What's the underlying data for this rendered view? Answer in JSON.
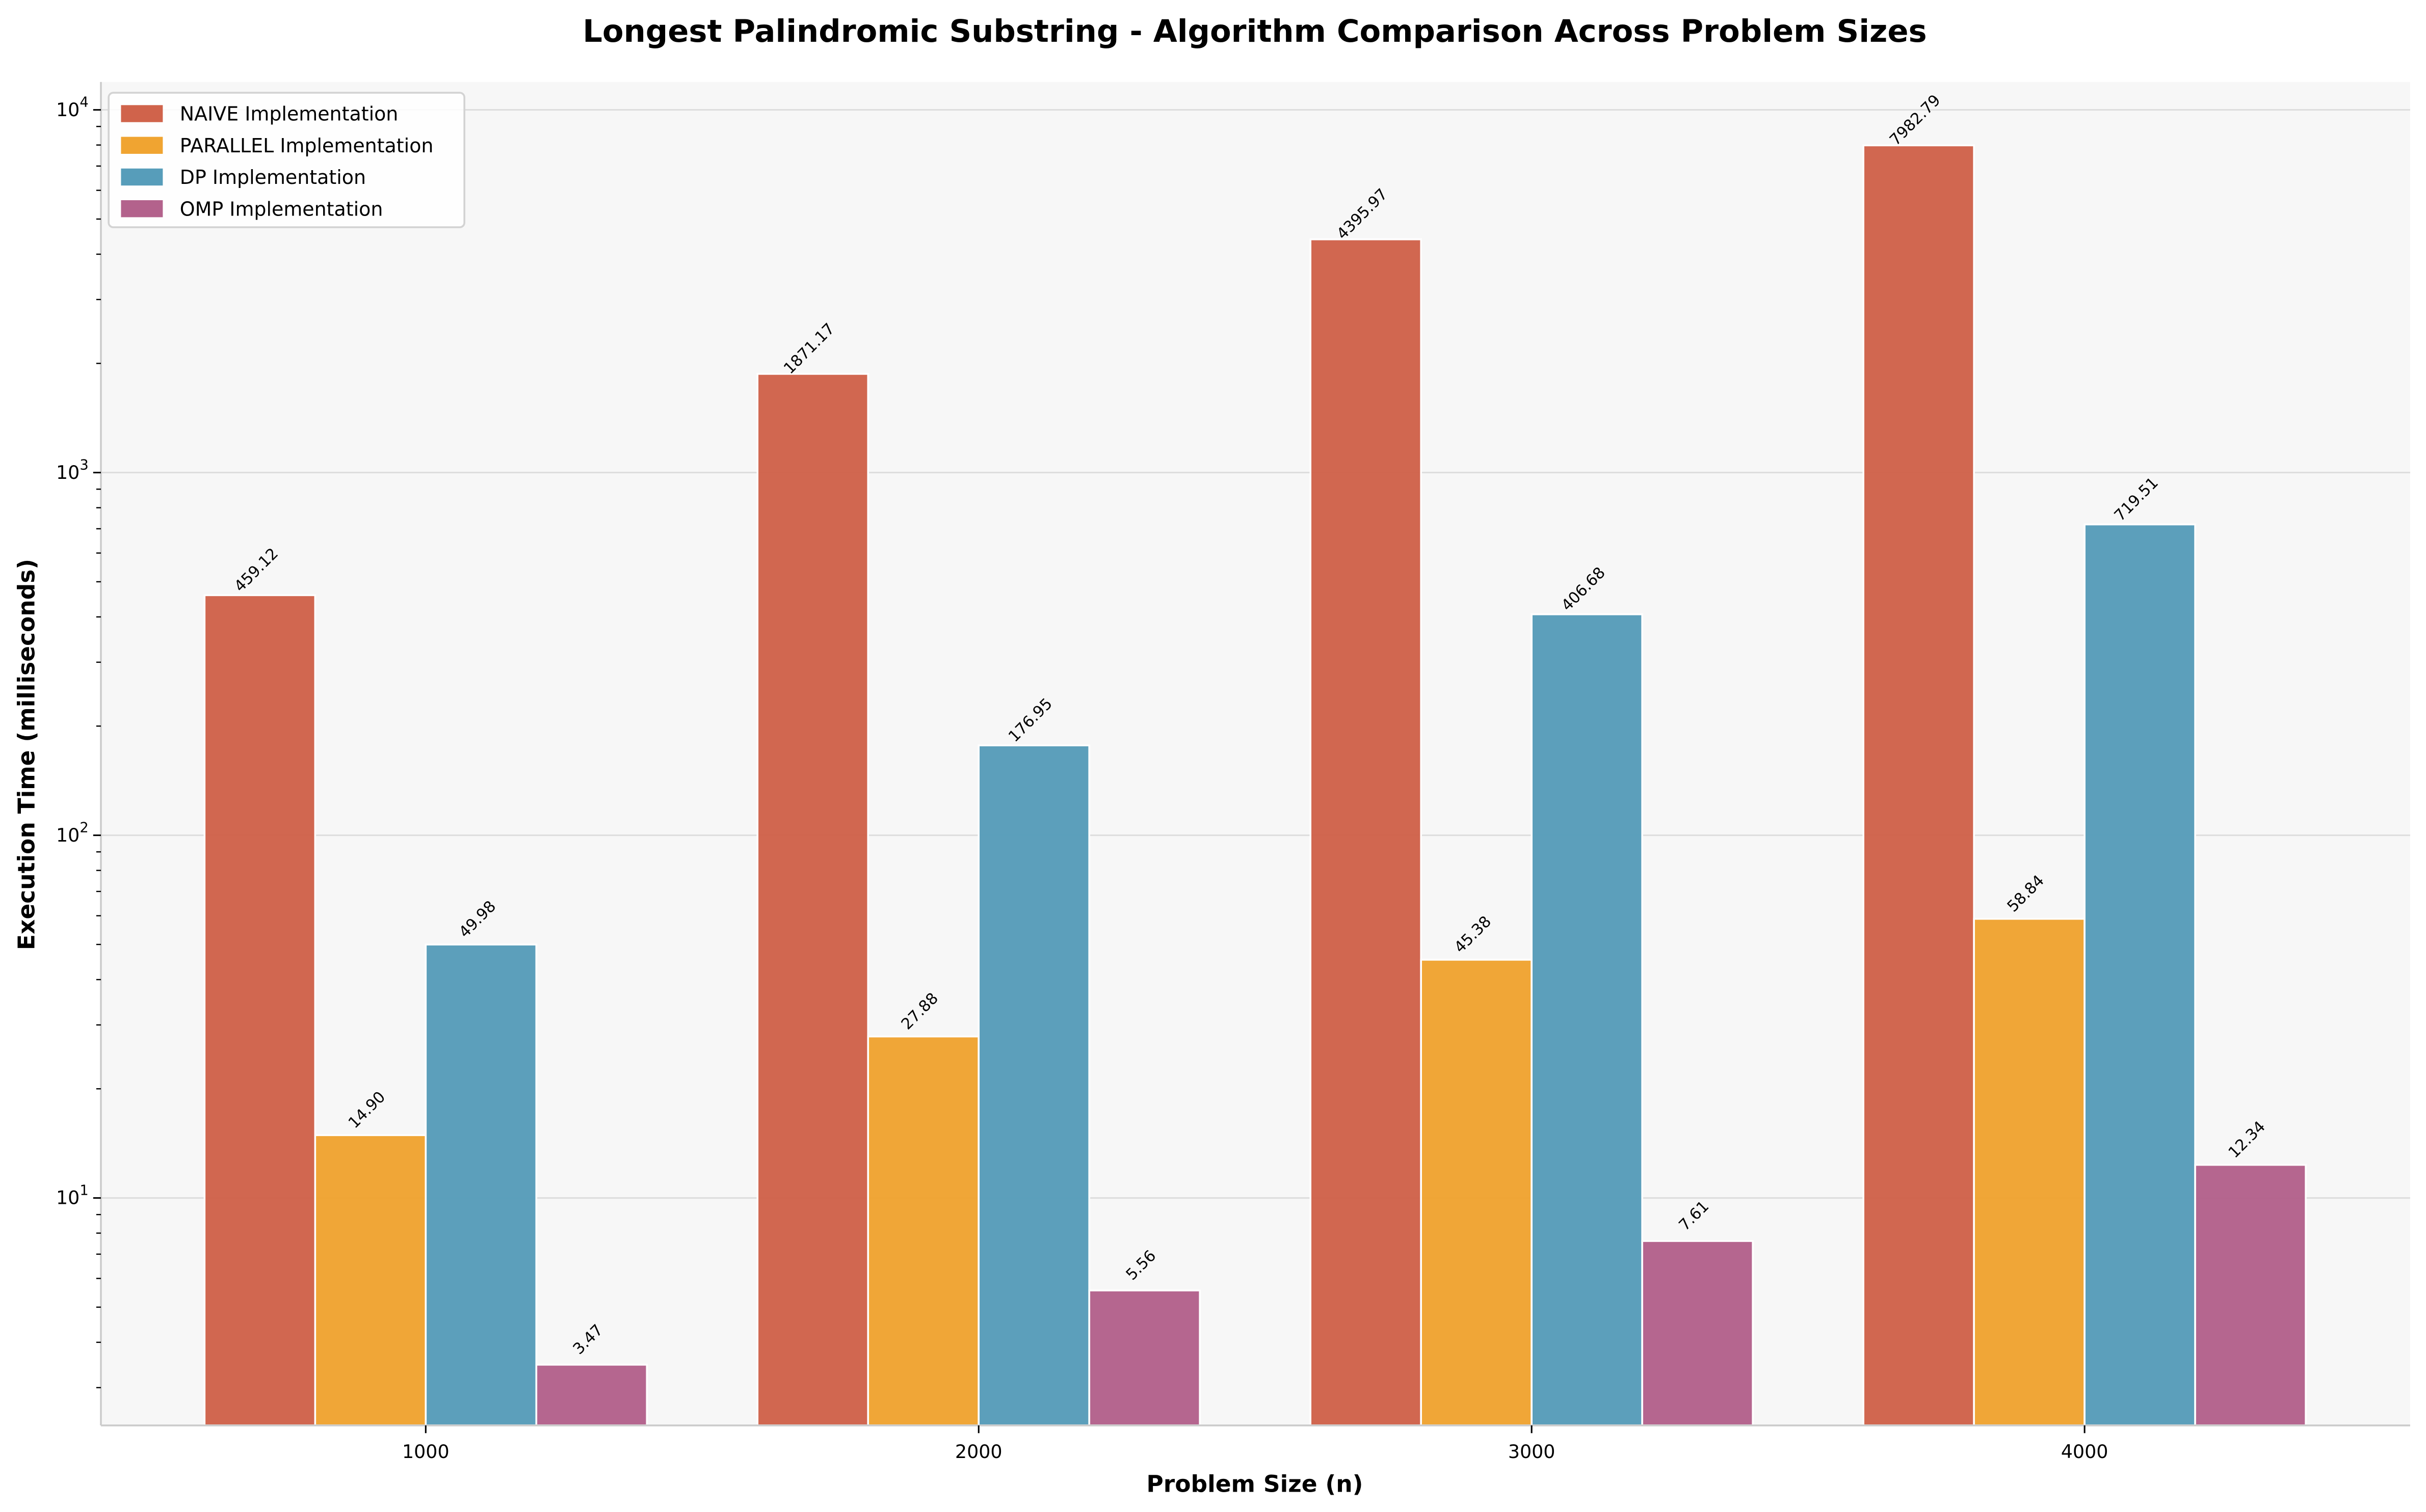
{
  "chart_data": {
    "type": "bar",
    "title": "Longest Palindromic Substring - Algorithm Comparison Across Problem Sizes",
    "xlabel": "Problem Size (n)",
    "ylabel": "Execution Time (milliseconds)",
    "yscale": "log",
    "ylim": [
      2.36,
      11940
    ],
    "yticks": [
      10,
      100,
      1000,
      10000
    ],
    "ytick_labels": [
      [
        "10",
        "1"
      ],
      [
        "10",
        "2"
      ],
      [
        "10",
        "3"
      ],
      [
        "10",
        "4"
      ]
    ],
    "categories": [
      "1000",
      "2000",
      "3000",
      "4000"
    ],
    "grid": "y-major",
    "legend_position": "top-left",
    "series": [
      {
        "name": "NAIVE Implementation",
        "color": "#D0634B",
        "values": [
          459.12,
          1871.17,
          4395.97,
          7982.79
        ],
        "labels": [
          "459.12",
          "1871.17",
          "4395.97",
          "7982.79"
        ]
      },
      {
        "name": "PARALLEL Implementation",
        "color": "#F0A431",
        "values": [
          14.9,
          27.88,
          45.38,
          58.84
        ],
        "labels": [
          "14.90",
          "27.88",
          "45.38",
          "58.84"
        ]
      },
      {
        "name": "DP Implementation",
        "color": "#579DBA",
        "values": [
          49.98,
          176.95,
          406.68,
          719.51
        ],
        "labels": [
          "49.98",
          "176.95",
          "406.68",
          "719.51"
        ]
      },
      {
        "name": "OMP Implementation",
        "color": "#B3628C",
        "values": [
          3.47,
          5.56,
          7.61,
          12.34
        ],
        "labels": [
          "3.47",
          "5.56",
          "7.61",
          "12.34"
        ]
      }
    ]
  }
}
